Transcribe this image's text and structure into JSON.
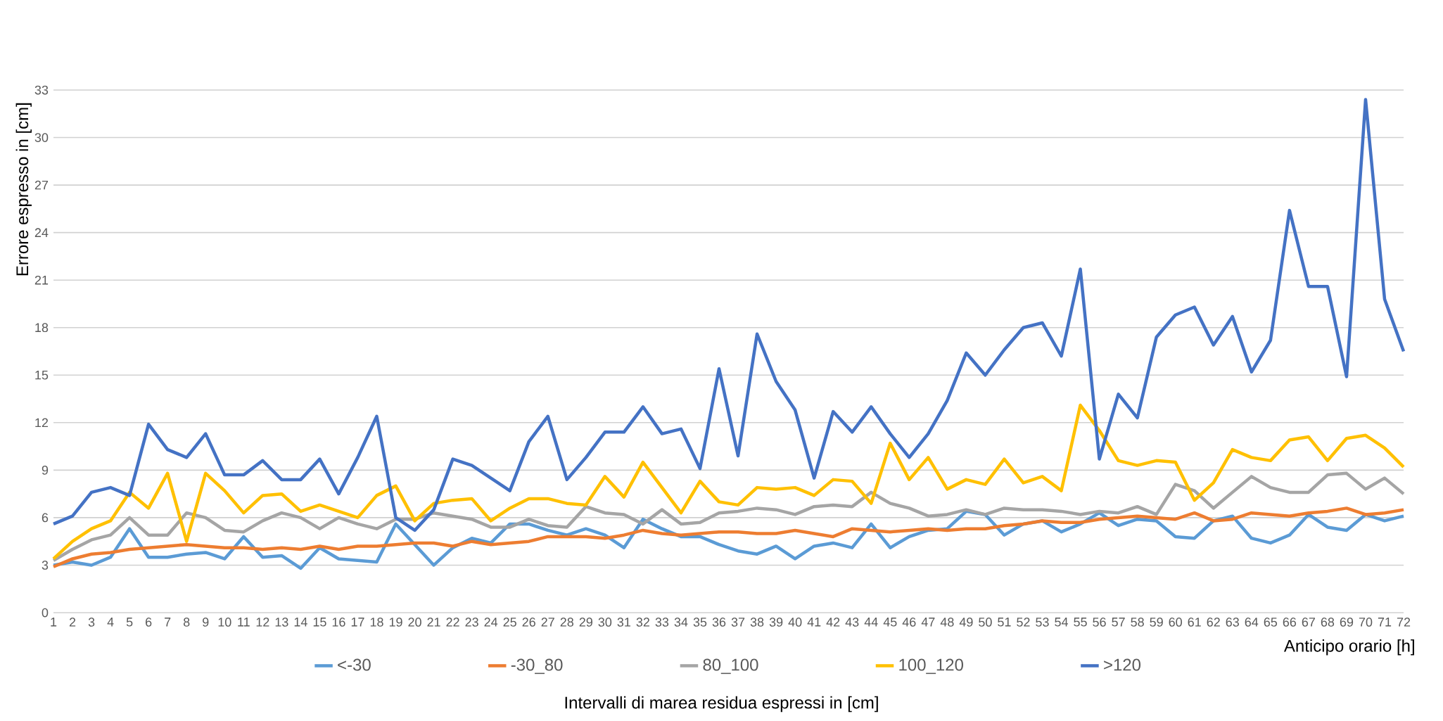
{
  "chart_data": {
    "type": "line",
    "xlabel": "Anticipo orario [h]",
    "ylabel": "Errore espresso in [cm]",
    "legend_title": "Intervalli di marea residua espressi in [cm]",
    "categories": [
      "1",
      "2",
      "3",
      "4",
      "5",
      "6",
      "7",
      "8",
      "9",
      "10",
      "11",
      "12",
      "13",
      "14",
      "15",
      "16",
      "17",
      "18",
      "19",
      "20",
      "21",
      "22",
      "23",
      "24",
      "25",
      "26",
      "27",
      "28",
      "29",
      "30",
      "31",
      "32",
      "33",
      "34",
      "35",
      "36",
      "37",
      "38",
      "39",
      "40",
      "41",
      "42",
      "43",
      "44",
      "45",
      "46",
      "47",
      "48",
      "49",
      "50",
      "51",
      "52",
      "53",
      "54",
      "55",
      "56",
      "57",
      "58",
      "59",
      "60",
      "61",
      "62",
      "63",
      "64",
      "65",
      "66",
      "67",
      "68",
      "69",
      "70",
      "71",
      "72"
    ],
    "series": [
      {
        "name": "<-30",
        "color": "#5b9bd5",
        "values": [
          3.0,
          3.2,
          3.0,
          3.5,
          5.3,
          3.5,
          3.5,
          3.7,
          3.8,
          3.4,
          4.8,
          3.5,
          3.6,
          2.8,
          4.1,
          3.4,
          3.3,
          3.2,
          5.6,
          4.3,
          3.0,
          4.1,
          4.7,
          4.4,
          5.6,
          5.6,
          5.2,
          4.9,
          5.3,
          4.9,
          4.1,
          5.9,
          5.3,
          4.8,
          4.8,
          4.3,
          3.9,
          3.7,
          4.2,
          3.4,
          4.2,
          4.4,
          4.1,
          5.6,
          4.1,
          4.8,
          5.2,
          5.3,
          6.4,
          6.2,
          4.9,
          5.6,
          5.8,
          5.1,
          5.6,
          6.3,
          5.5,
          5.9,
          5.8,
          4.8,
          4.7,
          5.8,
          6.1,
          4.7,
          4.4,
          4.9,
          6.2,
          5.4,
          5.2,
          6.2,
          5.8,
          6.1
        ]
      },
      {
        "name": "-30_80",
        "color": "#ed7d31",
        "values": [
          2.9,
          3.4,
          3.7,
          3.8,
          4.0,
          4.1,
          4.2,
          4.3,
          4.2,
          4.1,
          4.1,
          4.0,
          4.1,
          4.0,
          4.2,
          4.0,
          4.2,
          4.2,
          4.3,
          4.4,
          4.4,
          4.2,
          4.5,
          4.3,
          4.4,
          4.5,
          4.8,
          4.8,
          4.8,
          4.7,
          4.9,
          5.2,
          5.0,
          4.9,
          5.0,
          5.1,
          5.1,
          5.0,
          5.0,
          5.2,
          5.0,
          4.8,
          5.3,
          5.2,
          5.1,
          5.2,
          5.3,
          5.2,
          5.3,
          5.3,
          5.5,
          5.6,
          5.8,
          5.7,
          5.7,
          5.9,
          6.0,
          6.1,
          6.0,
          5.9,
          6.3,
          5.8,
          5.9,
          6.3,
          6.2,
          6.1,
          6.3,
          6.4,
          6.6,
          6.2,
          6.3,
          6.5
        ]
      },
      {
        "name": "80_100",
        "color": "#a5a5a5",
        "values": [
          3.3,
          4.0,
          4.6,
          4.9,
          6.0,
          4.9,
          4.9,
          6.3,
          6.0,
          5.2,
          5.1,
          5.8,
          6.3,
          6.0,
          5.3,
          6.0,
          5.6,
          5.3,
          5.9,
          5.9,
          6.3,
          6.1,
          5.9,
          5.4,
          5.4,
          5.9,
          5.5,
          5.4,
          6.7,
          6.3,
          6.2,
          5.6,
          6.5,
          5.6,
          5.7,
          6.3,
          6.4,
          6.6,
          6.5,
          6.2,
          6.7,
          6.8,
          6.7,
          7.6,
          6.9,
          6.6,
          6.1,
          6.2,
          6.5,
          6.2,
          6.6,
          6.5,
          6.5,
          6.4,
          6.2,
          6.4,
          6.3,
          6.7,
          6.2,
          8.1,
          7.7,
          6.6,
          7.6,
          8.6,
          7.9,
          7.6,
          7.6,
          8.7,
          8.8,
          7.8,
          8.5,
          7.5
        ]
      },
      {
        "name": "100_120",
        "color": "#ffc000",
        "values": [
          3.4,
          4.5,
          5.3,
          5.8,
          7.6,
          6.6,
          8.8,
          4.5,
          8.8,
          7.7,
          6.3,
          7.4,
          7.5,
          6.4,
          6.8,
          6.4,
          6.0,
          7.4,
          8.0,
          5.8,
          6.9,
          7.1,
          7.2,
          5.8,
          6.6,
          7.2,
          7.2,
          6.9,
          6.8,
          8.6,
          7.3,
          9.5,
          7.9,
          6.3,
          8.3,
          7.0,
          6.8,
          7.9,
          7.8,
          7.9,
          7.4,
          8.4,
          8.3,
          6.9,
          10.7,
          8.4,
          9.8,
          7.8,
          8.4,
          8.1,
          9.7,
          8.2,
          8.6,
          7.7,
          13.1,
          11.5,
          9.6,
          9.3,
          9.6,
          9.5,
          7.1,
          8.2,
          10.3,
          9.8,
          9.6,
          10.9,
          11.1,
          9.6,
          11.0,
          11.2,
          10.4,
          9.2
        ]
      },
      {
        "name": ">120",
        "color": "#4472c4",
        "values": [
          5.6,
          6.1,
          7.6,
          7.9,
          7.4,
          11.9,
          10.3,
          9.8,
          11.3,
          8.7,
          8.7,
          9.6,
          8.4,
          8.4,
          9.7,
          7.5,
          9.8,
          12.4,
          6.0,
          5.2,
          6.5,
          9.7,
          9.3,
          8.5,
          7.7,
          10.8,
          12.4,
          8.4,
          9.8,
          11.4,
          11.4,
          13.0,
          11.3,
          11.6,
          9.1,
          15.4,
          9.9,
          17.6,
          14.6,
          12.8,
          8.5,
          12.7,
          11.4,
          13.0,
          11.3,
          9.8,
          11.3,
          13.4,
          16.4,
          15.0,
          16.6,
          18.0,
          18.3,
          16.2,
          21.7,
          9.7,
          13.8,
          12.3,
          17.4,
          18.8,
          19.3,
          16.9,
          18.7,
          15.2,
          17.2,
          25.4,
          20.6,
          20.6,
          14.9,
          32.4,
          19.8,
          16.5
        ]
      }
    ],
    "ylim": [
      0,
      33
    ],
    "yticks": [
      0,
      3,
      6,
      9,
      12,
      15,
      18,
      21,
      24,
      27,
      30,
      33
    ],
    "grid": "y",
    "legend": "bottom",
    "line_style": "solid"
  }
}
